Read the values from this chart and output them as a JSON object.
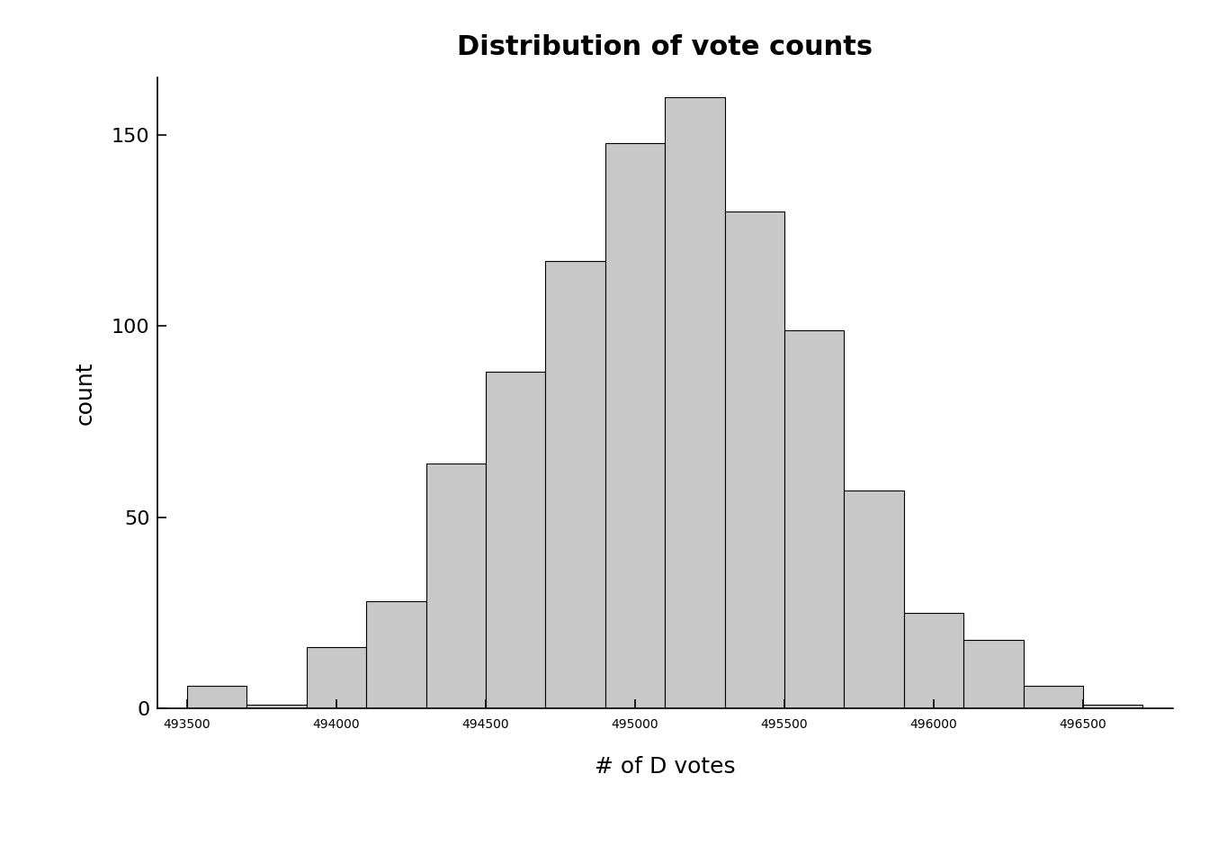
{
  "title": "Distribution of vote counts",
  "xlabel": "# of D votes",
  "ylabel": "count",
  "bar_color": "#c8c8c8",
  "bar_edge_color": "#000000",
  "bar_edge_width": 0.8,
  "background_color": "#ffffff",
  "ylim": [
    0,
    165
  ],
  "yticks": [
    0,
    50,
    100,
    150
  ],
  "xticks": [
    493500,
    494000,
    494500,
    495000,
    495500,
    496000,
    496500
  ],
  "xlim": [
    493400,
    496800
  ],
  "bin_edges": [
    493500,
    493700,
    493900,
    494100,
    494300,
    494500,
    494700,
    494900,
    495100,
    495300,
    495500,
    495700,
    495900,
    496100,
    496300,
    496500,
    496700
  ],
  "counts": [
    6,
    1,
    16,
    28,
    64,
    88,
    117,
    148,
    160,
    130,
    99,
    57,
    25,
    18,
    6,
    1
  ],
  "title_fontsize": 22,
  "axis_label_fontsize": 18,
  "tick_label_fontsize": 16
}
